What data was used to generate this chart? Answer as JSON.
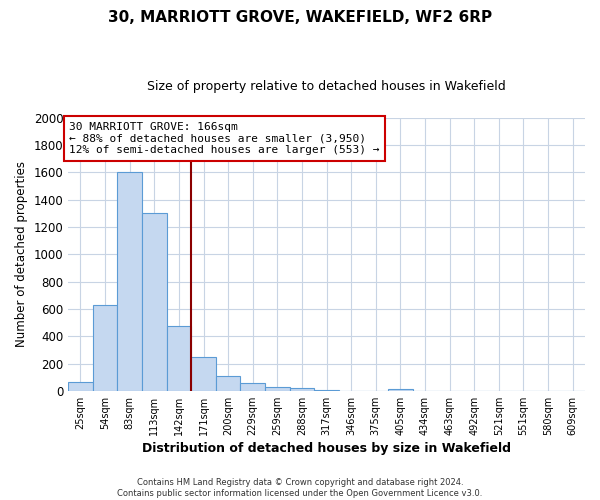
{
  "title": "30, MARRIOTT GROVE, WAKEFIELD, WF2 6RP",
  "subtitle": "Size of property relative to detached houses in Wakefield",
  "xlabel": "Distribution of detached houses by size in Wakefield",
  "ylabel": "Number of detached properties",
  "bar_labels": [
    "25sqm",
    "54sqm",
    "83sqm",
    "113sqm",
    "142sqm",
    "171sqm",
    "200sqm",
    "229sqm",
    "259sqm",
    "288sqm",
    "317sqm",
    "346sqm",
    "375sqm",
    "405sqm",
    "434sqm",
    "463sqm",
    "492sqm",
    "521sqm",
    "551sqm",
    "580sqm",
    "609sqm"
  ],
  "bar_heights": [
    65,
    630,
    1600,
    1300,
    475,
    250,
    105,
    55,
    30,
    20,
    5,
    0,
    0,
    15,
    0,
    0,
    0,
    0,
    0,
    0,
    0
  ],
  "bar_centers": [
    0,
    1,
    2,
    3,
    4,
    5,
    6,
    7,
    8,
    9,
    10,
    11,
    12,
    13,
    14,
    15,
    16,
    17,
    18,
    19,
    20
  ],
  "bar_color": "#c5d8f0",
  "bar_edge_color": "#5b9bd5",
  "property_bin": 5,
  "red_line_color": "#8b0000",
  "annotation_box_edge_color": "#cc0000",
  "annotation_text_line1": "30 MARRIOTT GROVE: 166sqm",
  "annotation_text_line2": "← 88% of detached houses are smaller (3,950)",
  "annotation_text_line3": "12% of semi-detached houses are larger (553) →",
  "ylim": [
    0,
    2000
  ],
  "yticks": [
    0,
    200,
    400,
    600,
    800,
    1000,
    1200,
    1400,
    1600,
    1800,
    2000
  ],
  "footer_line1": "Contains HM Land Registry data © Crown copyright and database right 2024.",
  "footer_line2": "Contains public sector information licensed under the Open Government Licence v3.0.",
  "background_color": "#ffffff",
  "grid_color": "#c8d4e4"
}
